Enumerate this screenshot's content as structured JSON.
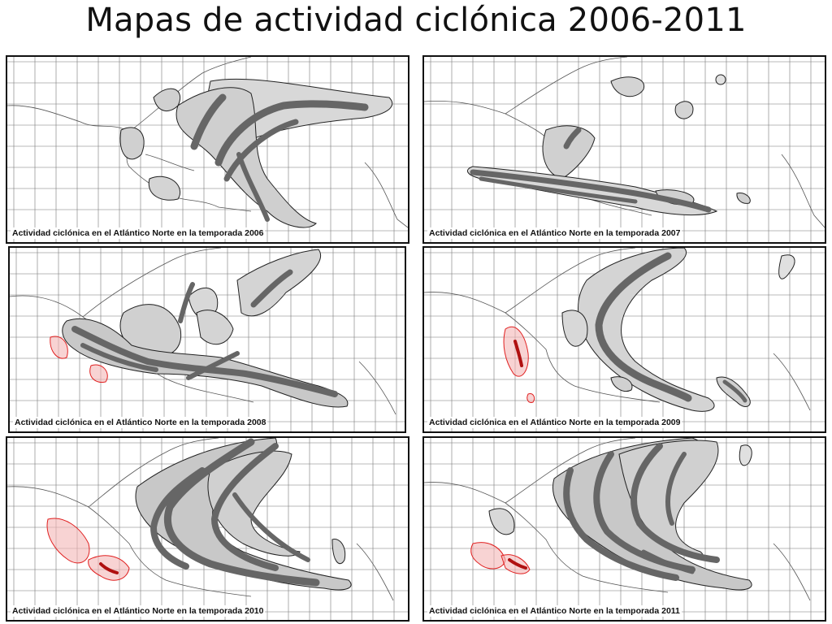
{
  "title": "Mapas de actividad ciclónica 2006-2011",
  "colors": {
    "track_dark": "#6d6d6d",
    "zone_light": "#cfcfcf",
    "zone_mid": "#a9a9a9",
    "outline": "#222222",
    "red": "#e02020",
    "red_fill": "#f4b6b6"
  },
  "panels": [
    {
      "year": "2006",
      "caption": "Actividad ciclónica en el Atlántico Norte en la temporada 2006"
    },
    {
      "year": "2007",
      "caption": "Actividad ciclónica en el Atlántico Norte en la temporada 2007"
    },
    {
      "year": "2008",
      "caption": "Actividad ciclónica en el Atlántico Norte en la temporada 2008"
    },
    {
      "year": "2009",
      "caption": "Actividad ciclónica en el Atlántico Norte en la temporada 2009"
    },
    {
      "year": "2010",
      "caption": "Actividad ciclónica en el Atlántico Norte en la temporada 2010"
    },
    {
      "year": "2011",
      "caption": "Actividad ciclónica en el Atlántico Norte en la temporada 2011"
    }
  ]
}
